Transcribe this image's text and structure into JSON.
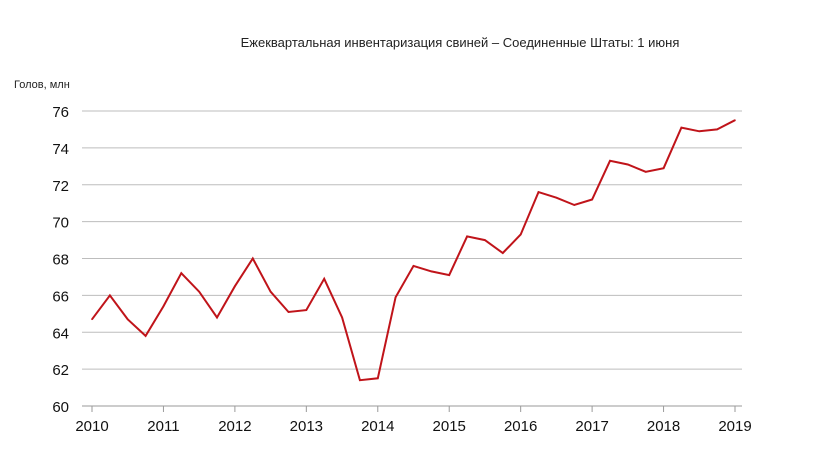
{
  "chart_data": {
    "type": "line",
    "title": "Ежеквартальная инвентаризация свиней – Соединенные Штаты: 1 июня",
    "ylabel": "Голов, млн",
    "xlabel": "",
    "ylim": [
      60,
      76
    ],
    "yticks": [
      60,
      62,
      64,
      66,
      68,
      70,
      72,
      74,
      76
    ],
    "xlim": [
      2010,
      2019
    ],
    "xticks": [
      2010,
      2011,
      2012,
      2013,
      2014,
      2015,
      2016,
      2017,
      2018,
      2019
    ],
    "grid": true,
    "series": [
      {
        "color": "#c0141a",
        "points": [
          [
            2010.0,
            64.7
          ],
          [
            2010.25,
            66.0
          ],
          [
            2010.5,
            64.7
          ],
          [
            2010.75,
            63.8
          ],
          [
            2011.0,
            65.4
          ],
          [
            2011.25,
            67.2
          ],
          [
            2011.5,
            66.2
          ],
          [
            2011.75,
            64.8
          ],
          [
            2012.0,
            66.5
          ],
          [
            2012.25,
            68.0
          ],
          [
            2012.5,
            66.2
          ],
          [
            2012.75,
            65.1
          ],
          [
            2013.0,
            65.2
          ],
          [
            2013.25,
            66.9
          ],
          [
            2013.5,
            64.8
          ],
          [
            2013.75,
            61.4
          ],
          [
            2014.0,
            61.5
          ],
          [
            2014.25,
            65.9
          ],
          [
            2014.5,
            67.6
          ],
          [
            2014.75,
            67.3
          ],
          [
            2015.0,
            67.1
          ],
          [
            2015.25,
            69.2
          ],
          [
            2015.5,
            69.0
          ],
          [
            2015.75,
            68.3
          ],
          [
            2016.0,
            69.3
          ],
          [
            2016.25,
            71.6
          ],
          [
            2016.5,
            71.3
          ],
          [
            2016.75,
            70.9
          ],
          [
            2017.0,
            71.2
          ],
          [
            2017.25,
            73.3
          ],
          [
            2017.5,
            73.1
          ],
          [
            2017.75,
            72.7
          ],
          [
            2018.0,
            72.9
          ],
          [
            2018.25,
            75.1
          ],
          [
            2018.5,
            74.9
          ],
          [
            2018.75,
            75.0
          ],
          [
            2019.0,
            75.5
          ]
        ]
      }
    ]
  }
}
